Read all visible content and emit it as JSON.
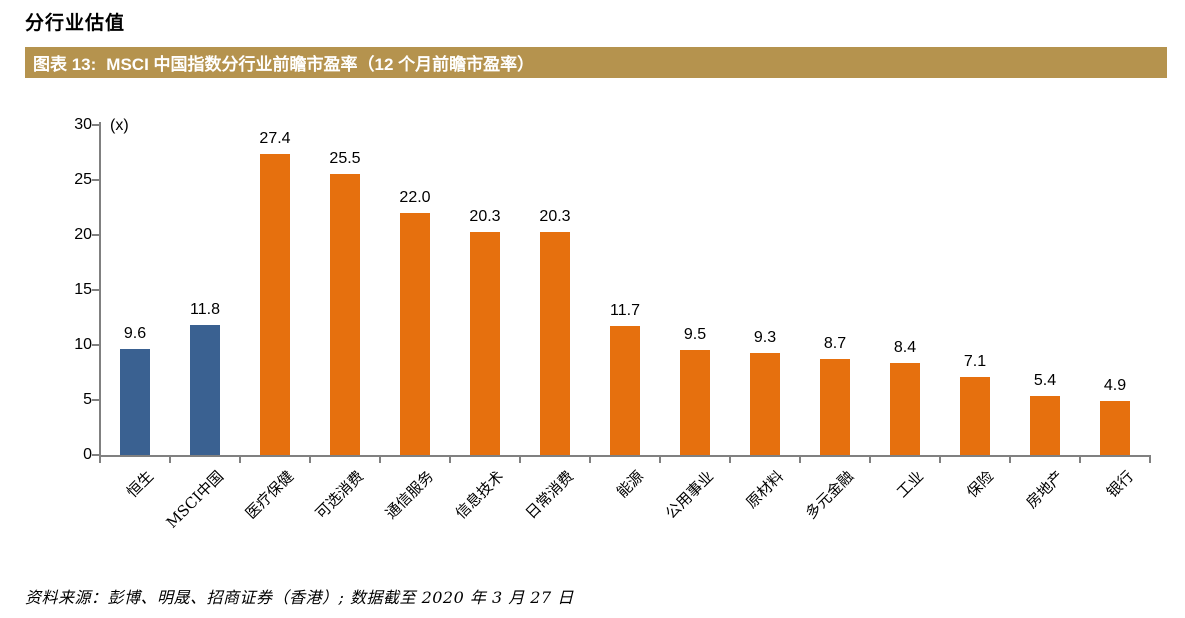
{
  "page": {
    "section_title": "分行业估值",
    "figure_header": {
      "label": "图表  13:",
      "title": "MSCI 中国指数分行业前瞻市盈率（12 个月前瞻市盈率）"
    },
    "footer": "资料来源：彭博、明晟、招商证券（香港）;  数据截至 2020 年 3 月 27 日"
  },
  "colors": {
    "banner_bg": "#B5934E",
    "banner_text": "#FFFFFF",
    "bar_benchmark_blue": "#3A6191",
    "bar_sector_orange": "#E6700E",
    "axis_gray": "#808080",
    "text": "#000000"
  },
  "chart_data": {
    "type": "bar",
    "title": "MSCI 中国指数分行业前瞻市盈率（12 个月前瞻市盈率）",
    "unit_label": "(x)",
    "categories": [
      "恒生",
      "MSCI中国",
      "医疗保健",
      "可选消费",
      "通信服务",
      "信息技术",
      "日常消费",
      "能源",
      "公用事业",
      "原材料",
      "多元金融",
      "工业",
      "保险",
      "房地产",
      "银行"
    ],
    "values": [
      9.6,
      11.8,
      27.4,
      25.5,
      22.0,
      20.3,
      20.3,
      11.7,
      9.5,
      9.3,
      8.7,
      8.4,
      7.1,
      5.4,
      4.9
    ],
    "value_labels": [
      "9.6",
      "11.8",
      "27.4",
      "25.5",
      "22.0",
      "20.3",
      "20.3",
      "11.7",
      "9.5",
      "9.3",
      "8.7",
      "8.4",
      "7.1",
      "5.4",
      "4.9"
    ],
    "highlight_count": 2,
    "xlabel": "",
    "ylabel": "(x)",
    "ylim": [
      0,
      30
    ],
    "yticks": [
      0,
      5,
      10,
      15,
      20,
      25,
      30
    ],
    "grid": false,
    "legend": "none",
    "data_labels": true
  }
}
